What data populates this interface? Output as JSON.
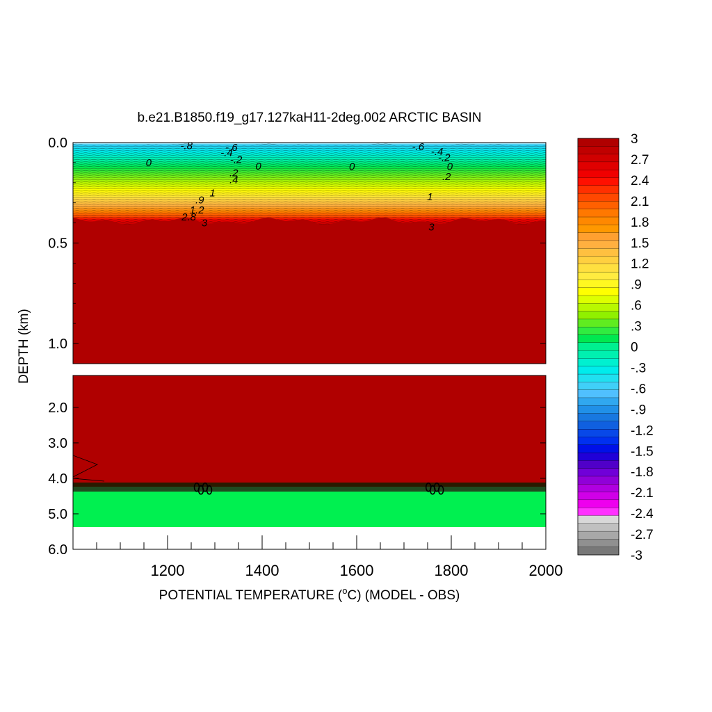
{
  "chart_data": {
    "type": "heatmap",
    "title": "b.e21.B1850.f19_g17.127kaH11-2deg.002 ARCTIC BASIN",
    "xlabel_prefix": "POTENTIAL TEMPERATURE (",
    "xlabel_degree": "o",
    "xlabel_suffix": "C) (MODEL - OBS)",
    "ylabel": "DEPTH (km)",
    "xlim": [
      1000,
      2000
    ],
    "x_ticks": [
      "1200",
      "1400",
      "1600",
      "1800",
      "2000"
    ],
    "x_tick_values": [
      1200,
      1400,
      1600,
      1800,
      2000
    ],
    "upper_panel": {
      "ylim": [
        0.0,
        1.1
      ],
      "y_ticks": [
        "0.0",
        "0.5",
        "1.0"
      ],
      "y_tick_values": [
        0.0,
        0.5,
        1.0
      ]
    },
    "lower_panel": {
      "ylim": [
        1.1,
        6.0
      ],
      "y_ticks": [
        "2.0",
        "3.0",
        "4.0",
        "5.0",
        "6.0"
      ],
      "y_tick_values": [
        2.0,
        3.0,
        4.0,
        5.0,
        6.0
      ]
    },
    "colorbar": {
      "labels": [
        "3",
        "2.7",
        "2.4",
        "2.1",
        "1.8",
        "1.5",
        "1.2",
        ".9",
        ".6",
        ".3",
        "0",
        "-.3",
        "-.6",
        "-.9",
        "-1.2",
        "-1.5",
        "-1.8",
        "-2.1",
        "-2.4",
        "-2.7",
        "-3"
      ],
      "colors_top_to_bottom": [
        "#b00000",
        "#c00000",
        "#d00000",
        "#e00000",
        "#f00000",
        "#ff1000",
        "#ff3000",
        "#ff4800",
        "#ff6000",
        "#ff7800",
        "#ff8800",
        "#ff9800",
        "#ffa030",
        "#ffb040",
        "#ffc040",
        "#ffd040",
        "#ffe040",
        "#ffec40",
        "#fff820",
        "#ffff00",
        "#ddff00",
        "#b8f800",
        "#90f000",
        "#60ec20",
        "#30ec40",
        "#00e850",
        "#00f090",
        "#00f0b0",
        "#00f0d0",
        "#00ecec",
        "#20e0f0",
        "#40d0f8",
        "#50c0ff",
        "#30a8f0",
        "#2090e8",
        "#1878e0",
        "#1060e0",
        "#0848e8",
        "#0030f0",
        "#0010e8",
        "#2000d8",
        "#5000c8",
        "#7000d8",
        "#9000d8",
        "#b000e0",
        "#d000e8",
        "#ee00ee",
        "#ff30ff",
        "#d8d8d8",
        "#c0c0c0",
        "#a8a8a8",
        "#909090",
        "#787878"
      ]
    },
    "contour_labels": [
      {
        "text": "-.8",
        "x": 1240,
        "y": 0.015
      },
      {
        "text": "-.6",
        "x": 1335,
        "y": 0.025
      },
      {
        "text": "-.4",
        "x": 1325,
        "y": 0.05
      },
      {
        "text": "-.2",
        "x": 1345,
        "y": 0.085
      },
      {
        "text": "0",
        "x": 1160,
        "y": 0.1
      },
      {
        "text": "0",
        "x": 1392,
        "y": 0.118
      },
      {
        "text": ".2",
        "x": 1340,
        "y": 0.15
      },
      {
        "text": ".4",
        "x": 1340,
        "y": 0.185
      },
      {
        "text": "1",
        "x": 1295,
        "y": 0.25
      },
      {
        "text": ".9",
        "x": 1268,
        "y": 0.285
      },
      {
        "text": "1.2",
        "x": 1262,
        "y": 0.335
      },
      {
        "text": "2.8",
        "x": 1245,
        "y": 0.37
      },
      {
        "text": "3",
        "x": 1278,
        "y": 0.4
      },
      {
        "text": "-.6",
        "x": 1730,
        "y": 0.02
      },
      {
        "text": "-.4",
        "x": 1770,
        "y": 0.045
      },
      {
        "text": "-.2",
        "x": 1785,
        "y": 0.075
      },
      {
        "text": "0",
        "x": 1797,
        "y": 0.12
      },
      {
        "text": ".2",
        "x": 1790,
        "y": 0.17
      },
      {
        "text": "1",
        "x": 1755,
        "y": 0.27
      },
      {
        "text": "3",
        "x": 1758,
        "y": 0.42
      },
      {
        "text": "0",
        "x": 1590,
        "y": 0.12
      }
    ],
    "notes": [
      "Bottom region ~5.3-6.0 km is white (no data)",
      "Band near 4.2-4.4 km shows dark contour clustering"
    ]
  }
}
